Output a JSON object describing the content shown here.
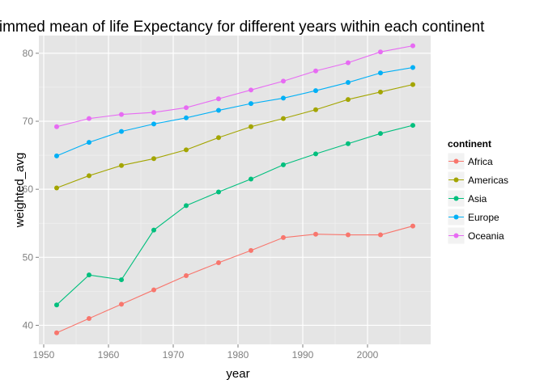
{
  "chart_data": {
    "type": "line",
    "title": "Trimmed mean of life Expectancy for different years within each continent",
    "xlabel": "year",
    "ylabel": "weighted_avg",
    "xlim": [
      1949.25,
      2009.75
    ],
    "ylim": [
      37.2,
      82.6
    ],
    "xticks": [
      1950,
      1960,
      1970,
      1980,
      1990,
      2000
    ],
    "yticks": [
      40,
      50,
      60,
      70,
      80
    ],
    "grid": true,
    "legend": {
      "title": "continent",
      "position": "right"
    },
    "x": [
      1952,
      1957,
      1962,
      1967,
      1972,
      1977,
      1982,
      1987,
      1992,
      1997,
      2002,
      2007
    ],
    "series": [
      {
        "name": "Africa",
        "color": "#F8766D",
        "values": [
          38.9,
          41.0,
          43.1,
          45.2,
          47.3,
          49.2,
          51.0,
          52.9,
          53.4,
          53.3,
          53.3,
          54.6
        ]
      },
      {
        "name": "Americas",
        "color": "#A3A500",
        "values": [
          60.2,
          62.0,
          63.5,
          64.5,
          65.8,
          67.6,
          69.2,
          70.4,
          71.7,
          73.2,
          74.3,
          75.4
        ]
      },
      {
        "name": "Asia",
        "color": "#00BF7D",
        "values": [
          43.0,
          47.4,
          46.7,
          54.0,
          57.6,
          59.6,
          61.5,
          63.6,
          65.2,
          66.7,
          68.2,
          69.4
        ]
      },
      {
        "name": "Europe",
        "color": "#00B0F6",
        "values": [
          64.9,
          66.9,
          68.5,
          69.6,
          70.5,
          71.6,
          72.6,
          73.4,
          74.5,
          75.7,
          77.1,
          77.9
        ]
      },
      {
        "name": "Oceania",
        "color": "#E76BF3",
        "values": [
          69.2,
          70.4,
          71.0,
          71.3,
          72.0,
          73.3,
          74.6,
          75.9,
          77.4,
          78.6,
          80.2,
          81.1
        ]
      }
    ]
  }
}
